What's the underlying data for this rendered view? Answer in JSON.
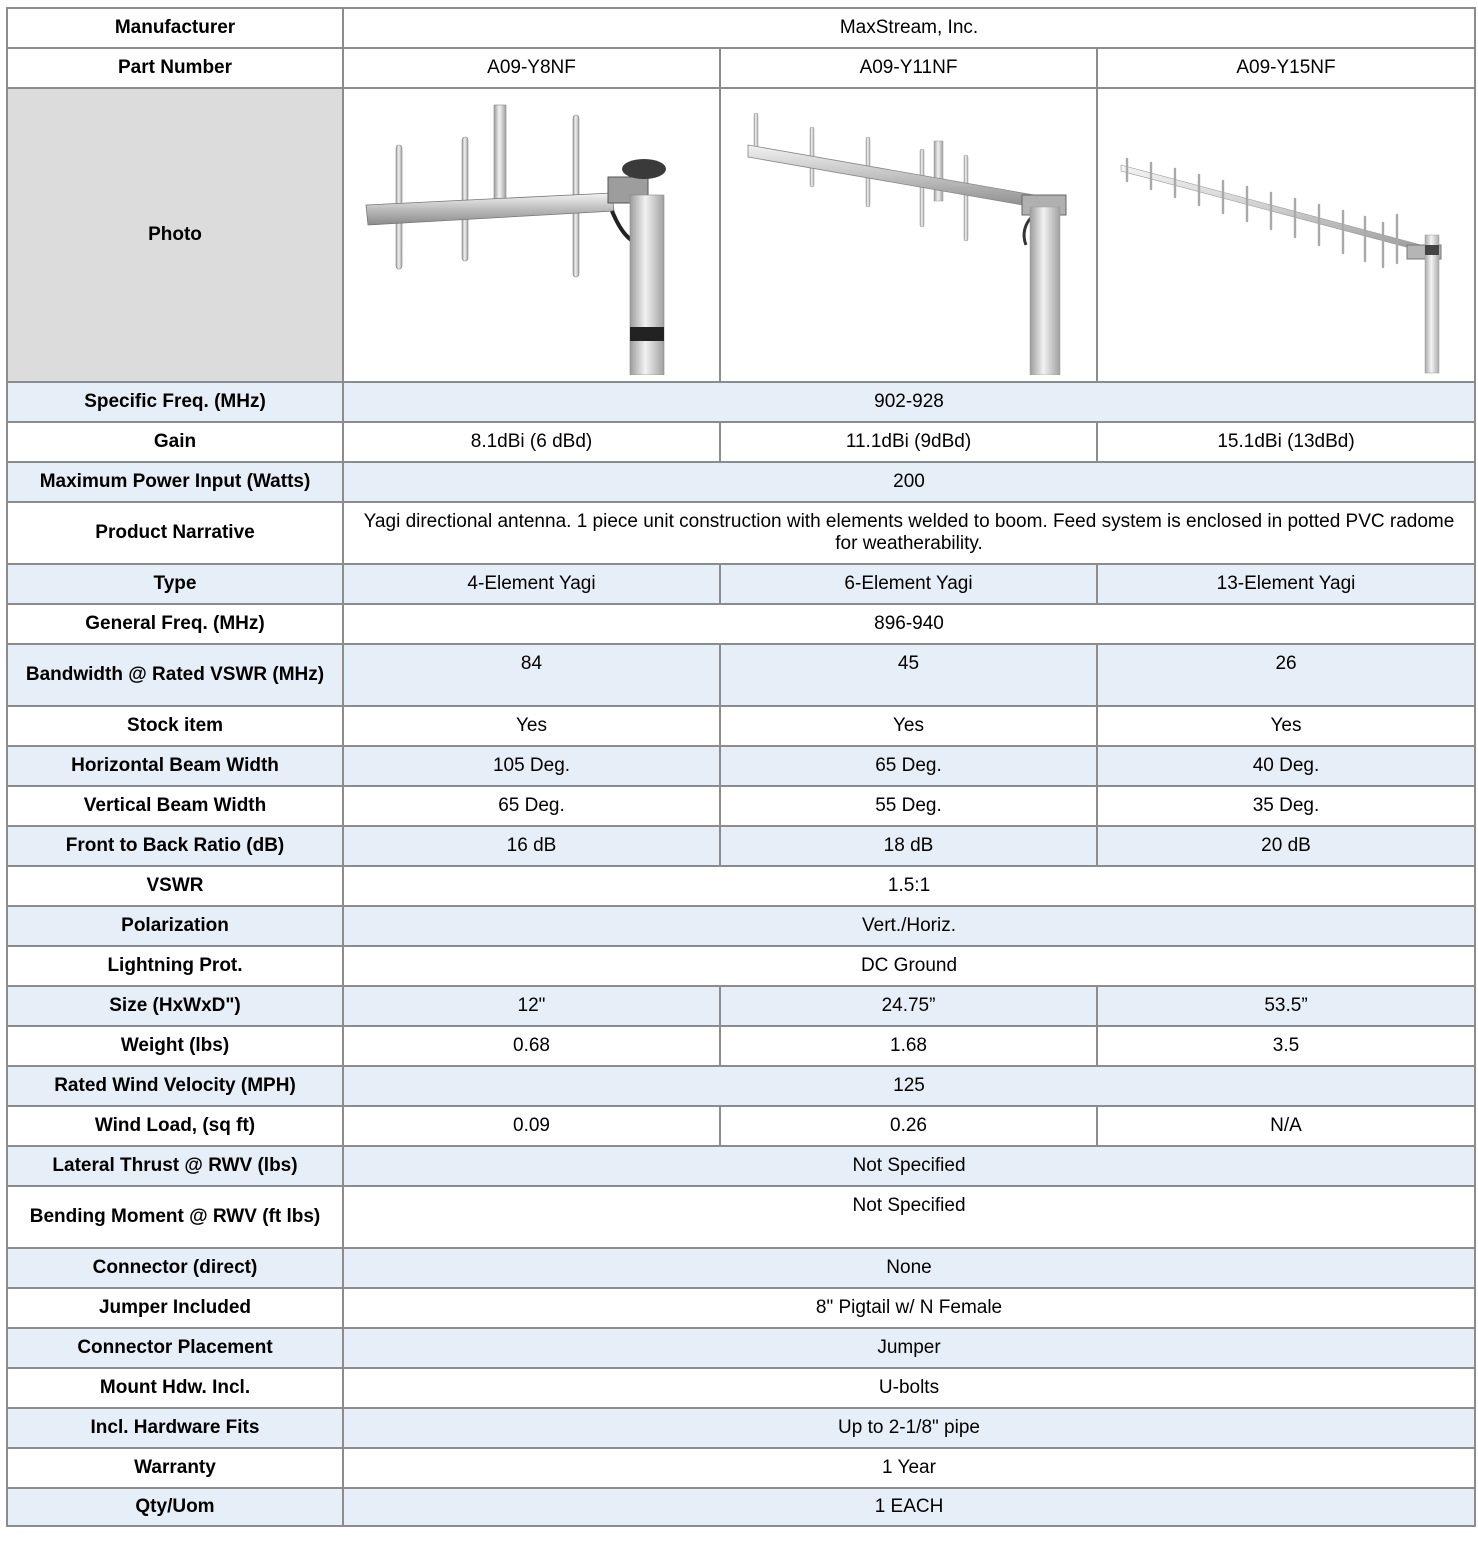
{
  "header": {
    "manufacturer_label": "Manufacturer",
    "manufacturer_value": "MaxStream, Inc.",
    "part_number_label": "Part Number",
    "part_numbers": [
      "A09-Y8NF",
      "A09-Y11NF",
      "A09-Y15NF"
    ],
    "photo_label": "Photo"
  },
  "rows": {
    "specific_freq": {
      "label": "Specific Freq. (MHz)",
      "value": "902-928"
    },
    "gain": {
      "label": "Gain",
      "values": [
        "8.1dBi (6 dBd)",
        "11.1dBi (9dBd)",
        "15.1dBi (13dBd)"
      ]
    },
    "max_power": {
      "label": "Maximum Power Input (Watts)",
      "value": "200"
    },
    "narrative": {
      "label": "Product Narrative",
      "value": "Yagi directional antenna. 1 piece unit construction with elements welded to boom. Feed system is enclosed in potted PVC radome for weatherability."
    },
    "type": {
      "label": "Type",
      "values": [
        "4-Element Yagi",
        "6-Element Yagi",
        "13-Element Yagi"
      ]
    },
    "general_freq": {
      "label": "General Freq. (MHz)",
      "value": "896-940"
    },
    "bandwidth": {
      "label": "Bandwidth @ Rated VSWR (MHz)",
      "values": [
        "84",
        "45",
        "26"
      ]
    },
    "stock": {
      "label": "Stock item",
      "values": [
        "Yes",
        "Yes",
        "Yes"
      ]
    },
    "h_beam": {
      "label": "Horizontal Beam Width",
      "values": [
        "105 Deg.",
        "65 Deg.",
        "40 Deg."
      ]
    },
    "v_beam": {
      "label": "Vertical Beam Width",
      "values": [
        "65 Deg.",
        "55 Deg.",
        "35 Deg."
      ]
    },
    "front_back": {
      "label": "Front to Back Ratio (dB)",
      "values": [
        "16 dB",
        "18 dB",
        "20 dB"
      ]
    },
    "vswr": {
      "label": "VSWR",
      "value": "1.5:1"
    },
    "polarization": {
      "label": "Polarization",
      "value": "Vert./Horiz."
    },
    "lightning": {
      "label": "Lightning Prot.",
      "value": "DC Ground"
    },
    "size": {
      "label": "Size (HxWxD\")",
      "values": [
        "12\"",
        "24.75”",
        "53.5”"
      ]
    },
    "weight": {
      "label": "Weight (lbs)",
      "values": [
        "0.68",
        "1.68",
        "3.5"
      ]
    },
    "wind_velocity": {
      "label": "Rated Wind Velocity (MPH)",
      "value": "125"
    },
    "wind_load": {
      "label": "Wind Load, (sq ft)",
      "values": [
        "0.09",
        "0.26",
        "N/A"
      ]
    },
    "lateral_thrust": {
      "label": "Lateral Thrust @ RWV (lbs)",
      "value": "Not Specified"
    },
    "bending_moment": {
      "label": "Bending Moment @ RWV (ft lbs)",
      "value": "Not Specified"
    },
    "connector_direct": {
      "label": "Connector (direct)",
      "value": "None"
    },
    "jumper": {
      "label": "Jumper Included",
      "value": "8\" Pigtail w/ N Female"
    },
    "connector_placement": {
      "label": "Connector Placement",
      "value": "Jumper"
    },
    "mount_hdw": {
      "label": "Mount Hdw. Incl.",
      "value": "U-bolts"
    },
    "hardware_fits": {
      "label": "Incl. Hardware Fits",
      "value": "Up to 2-1/8\" pipe"
    },
    "warranty": {
      "label": "Warranty",
      "value": "1 Year"
    },
    "qty_uom": {
      "label": "Qty/Uom",
      "value": "1 EACH"
    }
  },
  "colors": {
    "grid": "#8c8c8c",
    "shade_row": "#e6eef7",
    "photo_label_bg": "#dcdcdc"
  }
}
